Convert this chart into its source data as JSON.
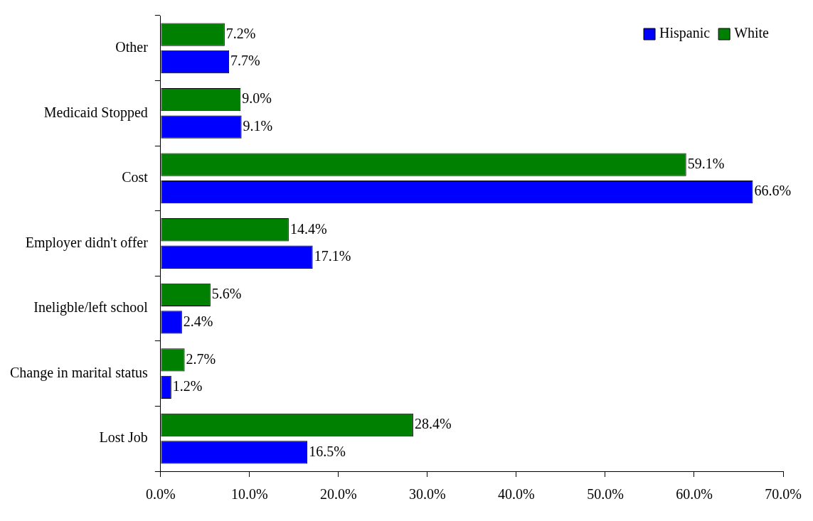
{
  "chart_data": {
    "type": "bar",
    "orientation": "horizontal",
    "categories": [
      "Other",
      "Medicaid Stopped",
      "Cost",
      "Employer didn't offer",
      "Ineligble/left school",
      "Change in marital status",
      "Lost Job"
    ],
    "series": [
      {
        "name": "White",
        "color": "#008000",
        "values": [
          7.2,
          9.0,
          59.1,
          14.4,
          5.6,
          2.7,
          28.4
        ],
        "value_labels": [
          "7.2%",
          "9.0%",
          "59.1%",
          "14.4%",
          "5.6%",
          "2.7%",
          "28.4%"
        ]
      },
      {
        "name": "Hispanic",
        "color": "#0000ff",
        "values": [
          7.7,
          9.1,
          66.6,
          17.1,
          2.4,
          1.2,
          16.5
        ],
        "value_labels": [
          "7.7%",
          "9.1%",
          "66.6%",
          "17.1%",
          "2.4%",
          "1.2%",
          "16.5%"
        ]
      }
    ],
    "xlim": [
      0,
      70
    ],
    "xticks": [
      {
        "value": 0,
        "label": "0.0%"
      },
      {
        "value": 10,
        "label": "10.0%"
      },
      {
        "value": 20,
        "label": "20.0%"
      },
      {
        "value": 30,
        "label": "30.0%"
      },
      {
        "value": 40,
        "label": "40.0%"
      },
      {
        "value": 50,
        "label": "50.0%"
      },
      {
        "value": 60,
        "label": "60.0%"
      },
      {
        "value": 70,
        "label": "70.0%"
      }
    ],
    "grid": false,
    "legend": "top right"
  }
}
